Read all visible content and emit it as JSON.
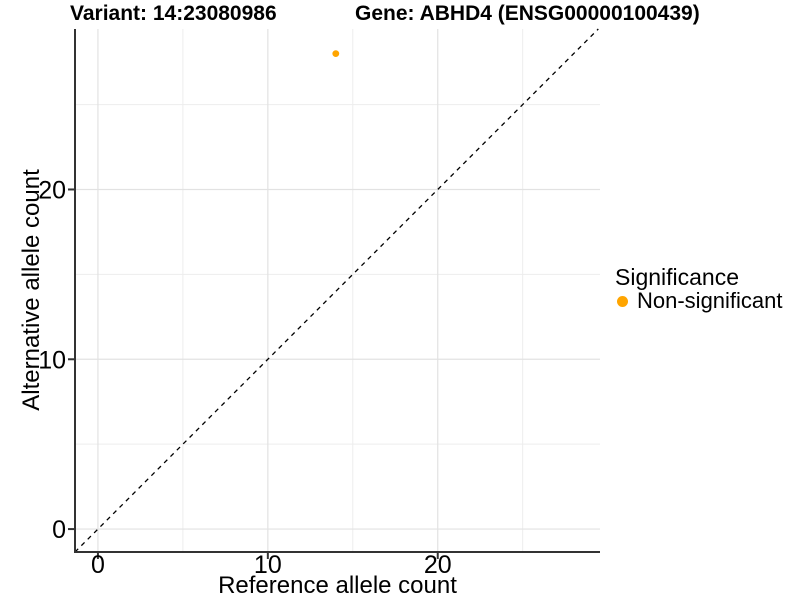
{
  "figure": {
    "background": "#FFFFFF"
  },
  "chart_data": {
    "type": "scatter",
    "titles": {
      "left": "Variant: 14:23080986",
      "right": "Gene: ABHD4 (ENSG00000100439)"
    },
    "xlabel": "Reference allele count",
    "ylabel": "Alternative allele count",
    "xlim": [
      -1.35,
      29.55
    ],
    "ylim": [
      -1.35,
      29.45
    ],
    "x_ticks": [
      0,
      10,
      20
    ],
    "y_ticks": [
      0,
      10,
      20
    ],
    "x_minor_ticks": [
      5,
      15,
      25
    ],
    "y_minor_ticks": [
      5,
      15,
      25
    ],
    "grid": true,
    "series": [
      {
        "name": "Non-significant",
        "color": "#FFA500",
        "points": [
          {
            "x": 14,
            "y": 28
          }
        ]
      }
    ],
    "reference_line": {
      "type": "identity",
      "linetype": "dashed",
      "color": "#000000"
    },
    "legend": {
      "title": "Significance",
      "position": "right",
      "items": [
        {
          "label": "Non-significant",
          "color": "#FFA500"
        }
      ]
    },
    "colors": {
      "grid_major": "#E2E2E2",
      "grid_minor": "#EDEDED",
      "axis_line": "#333333",
      "tick_mark": "#333333",
      "text": "#000000"
    }
  }
}
